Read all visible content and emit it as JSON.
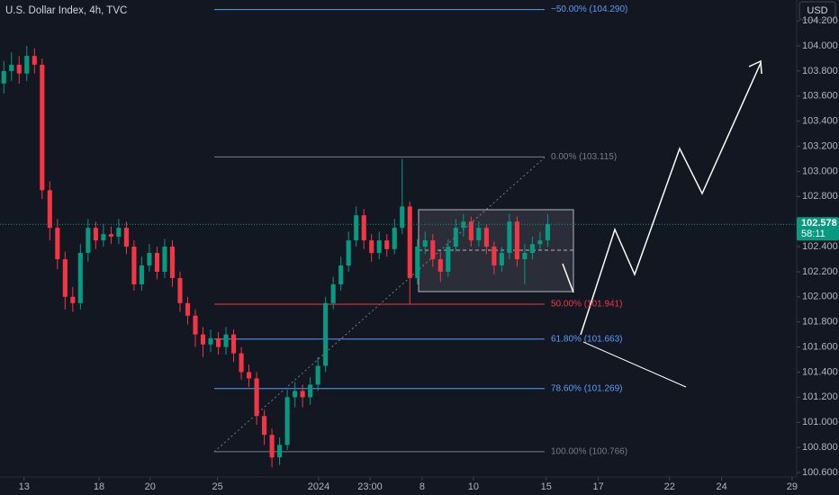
{
  "chart_data": {
    "type": "candlestick",
    "title": "U.S. Dollar Index, 4h, TVC",
    "currency": "USD",
    "up_color": "#089981",
    "down_color": "#f23645",
    "open": [
      103.7,
      103.8,
      103.85,
      103.78,
      103.92,
      103.85,
      102.85,
      102.55,
      102.3,
      102.0,
      101.95,
      102.35,
      102.55,
      102.45,
      102.5,
      102.48,
      102.55,
      102.4,
      102.1,
      102.25,
      102.35,
      102.2,
      102.4,
      102.15,
      101.95,
      101.85,
      101.7,
      101.62,
      101.67,
      101.6,
      101.7,
      101.55,
      101.4,
      101.35,
      101.05,
      100.9,
      100.72,
      100.82,
      101.2,
      101.25,
      101.2,
      101.3,
      101.45,
      101.95,
      102.1,
      102.25,
      102.45,
      102.65,
      102.45,
      102.35,
      102.45,
      102.38,
      102.55,
      102.72,
      102.15,
      102.4,
      102.45,
      102.3,
      102.2,
      102.4,
      102.55,
      102.6,
      102.45,
      102.55,
      102.4,
      102.25,
      102.35,
      102.6,
      102.3,
      102.35,
      102.42,
      102.45
    ],
    "high": [
      103.88,
      103.95,
      103.92,
      104.0,
      103.98,
      103.9,
      102.92,
      102.62,
      102.36,
      102.08,
      102.42,
      102.62,
      102.6,
      102.58,
      102.56,
      102.62,
      102.6,
      102.45,
      102.32,
      102.42,
      102.4,
      102.46,
      102.45,
      102.2,
      102.0,
      101.9,
      101.76,
      101.74,
      101.72,
      101.76,
      101.74,
      101.6,
      101.46,
      101.4,
      101.1,
      100.95,
      100.88,
      101.26,
      101.32,
      101.3,
      101.36,
      101.52,
      102.0,
      102.16,
      102.32,
      102.52,
      102.72,
      102.7,
      102.5,
      102.52,
      102.5,
      102.62,
      103.1,
      102.76,
      102.46,
      102.52,
      102.5,
      102.36,
      102.46,
      102.62,
      102.66,
      102.64,
      102.6,
      102.58,
      102.44,
      102.4,
      102.66,
      102.64,
      102.42,
      102.48,
      102.52,
      102.66
    ],
    "low": [
      103.62,
      103.72,
      103.7,
      103.72,
      103.78,
      102.78,
      102.45,
      102.22,
      101.9,
      101.88,
      101.9,
      102.28,
      102.38,
      102.4,
      102.42,
      102.42,
      102.34,
      102.05,
      102.05,
      102.2,
      102.14,
      102.15,
      102.08,
      101.88,
      101.78,
      101.6,
      101.52,
      101.56,
      101.54,
      101.54,
      101.48,
      101.34,
      101.28,
      100.98,
      100.82,
      100.64,
      100.66,
      100.78,
      101.12,
      101.12,
      101.14,
      101.25,
      101.4,
      101.9,
      102.05,
      102.2,
      102.4,
      102.38,
      102.28,
      102.3,
      102.32,
      102.34,
      102.5,
      101.94,
      102.1,
      102.34,
      102.24,
      102.12,
      102.16,
      102.36,
      102.48,
      102.4,
      102.4,
      102.34,
      102.18,
      102.2,
      102.3,
      102.24,
      102.1,
      102.3,
      102.38,
      102.4
    ],
    "close": [
      103.8,
      103.85,
      103.78,
      103.92,
      103.85,
      102.85,
      102.55,
      102.3,
      102.0,
      101.95,
      102.35,
      102.55,
      102.45,
      102.5,
      102.48,
      102.55,
      102.4,
      102.1,
      102.25,
      102.35,
      102.2,
      102.4,
      102.15,
      101.95,
      101.85,
      101.7,
      101.62,
      101.67,
      101.6,
      101.7,
      101.55,
      101.4,
      101.35,
      101.05,
      100.9,
      100.72,
      100.82,
      101.2,
      101.25,
      101.2,
      101.3,
      101.45,
      101.95,
      102.1,
      102.25,
      102.45,
      102.65,
      102.45,
      102.35,
      102.45,
      102.38,
      102.55,
      102.72,
      102.15,
      102.4,
      102.45,
      102.3,
      102.2,
      102.4,
      102.55,
      102.6,
      102.45,
      102.55,
      102.4,
      102.25,
      102.35,
      102.6,
      102.3,
      102.35,
      102.42,
      102.45,
      102.58
    ],
    "xlim": [
      0,
      104
    ],
    "xticks": [
      {
        "value": 3.14,
        "label": "13"
      },
      {
        "value": 12.93,
        "label": "18"
      },
      {
        "value": 19.6,
        "label": "20"
      },
      {
        "value": 28.4,
        "label": "25"
      },
      {
        "value": 41.6,
        "label": "2024"
      },
      {
        "value": 48.3,
        "label": "23:00"
      },
      {
        "value": 55.1,
        "label": "8"
      },
      {
        "value": 61.8,
        "label": "10"
      },
      {
        "value": 71.3,
        "label": "15"
      },
      {
        "value": 78.1,
        "label": "17"
      },
      {
        "value": 87.4,
        "label": "22"
      },
      {
        "value": 94.2,
        "label": "24"
      },
      {
        "value": 103.4,
        "label": "29"
      }
    ],
    "ylim": [
      100.564,
      104.366
    ],
    "yticks": [
      {
        "value": 104.2,
        "label": "104.200"
      },
      {
        "value": 104.0,
        "label": "104.000"
      },
      {
        "value": 103.8,
        "label": "103.800"
      },
      {
        "value": 103.6,
        "label": "103.600"
      },
      {
        "value": 103.4,
        "label": "103.400"
      },
      {
        "value": 103.2,
        "label": "103.200"
      },
      {
        "value": 103.0,
        "label": "103.000"
      },
      {
        "value": 102.8,
        "label": "102.800"
      },
      {
        "value": 102.4,
        "label": "102.400"
      },
      {
        "value": 102.2,
        "label": "102.200"
      },
      {
        "value": 102.0,
        "label": "102.000"
      },
      {
        "value": 101.8,
        "label": "101.800"
      },
      {
        "value": 101.6,
        "label": "101.600"
      },
      {
        "value": 101.4,
        "label": "101.400"
      },
      {
        "value": 101.2,
        "label": "101.200"
      },
      {
        "value": 101.0,
        "label": "101.000"
      },
      {
        "value": 100.8,
        "label": "100.800"
      },
      {
        "value": 100.6,
        "label": "100.600"
      }
    ],
    "last_price": {
      "value": 102.578,
      "label": "102.578",
      "countdown": "58:11"
    },
    "fib_levels": [
      {
        "value": 104.29,
        "label": "−50.00% (104.290)",
        "color": "#5b9cf6"
      },
      {
        "value": 103.115,
        "label": "0.00% (103.115)",
        "color": "#787b86"
      },
      {
        "value": 101.941,
        "label": "50.00% (101.941)",
        "color": "#f23645"
      },
      {
        "value": 101.663,
        "label": "61.80% (101.663)",
        "color": "#5b9cf6"
      },
      {
        "value": 101.269,
        "label": "78.60% (101.269)",
        "color": "#5b9cf6"
      },
      {
        "value": 100.766,
        "label": "100.00% (100.766)",
        "color": "#787b86"
      }
    ]
  }
}
